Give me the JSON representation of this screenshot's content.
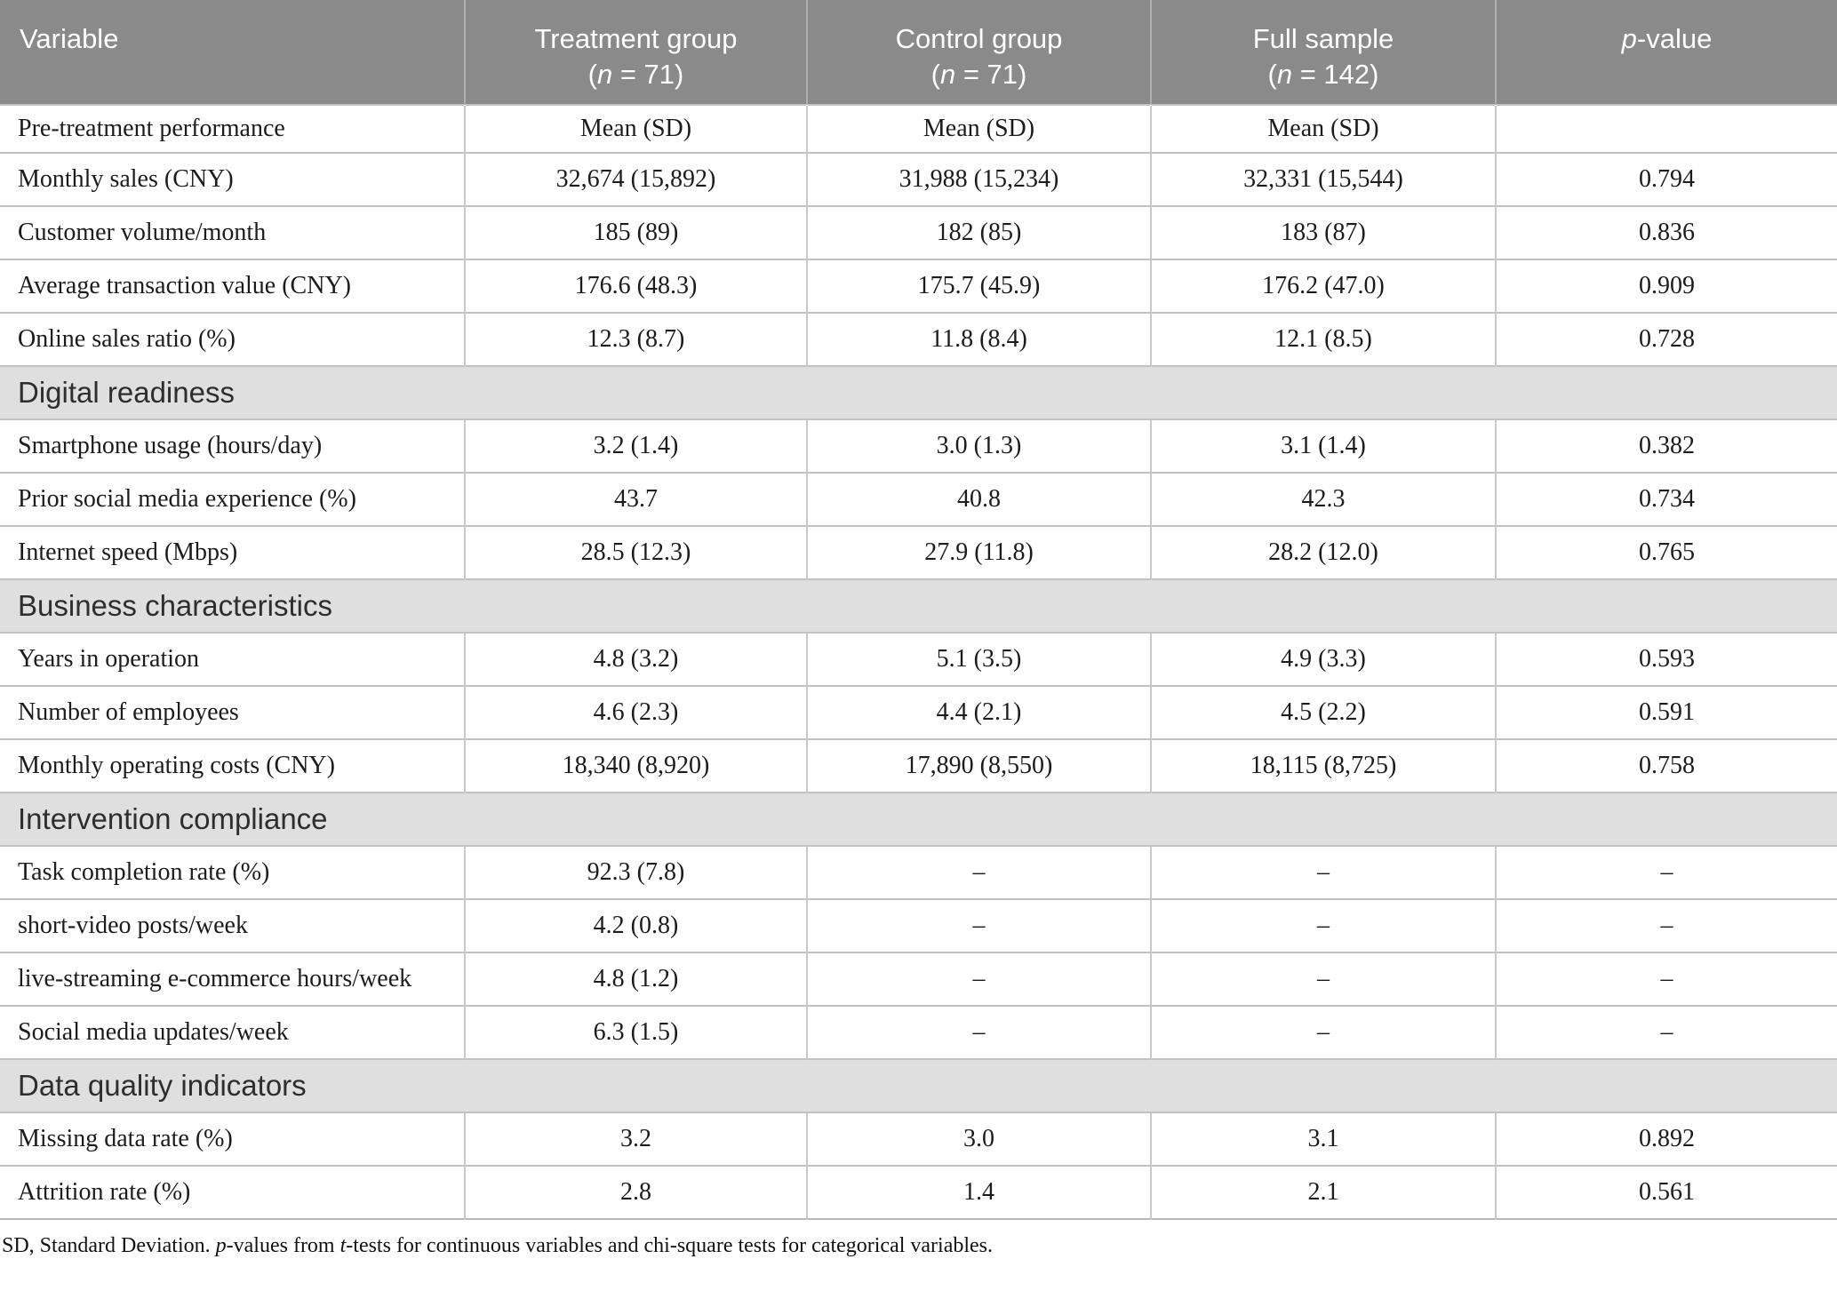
{
  "table": {
    "columns": [
      {
        "name": "variable",
        "line1": [
          {
            "t": "Variable"
          }
        ],
        "line2": null
      },
      {
        "name": "treatment-group",
        "line1": [
          {
            "t": "Treatment group"
          }
        ],
        "line2": [
          {
            "t": "("
          },
          {
            "t": "n",
            "i": true
          },
          {
            "t": " = 71)"
          }
        ]
      },
      {
        "name": "control-group",
        "line1": [
          {
            "t": "Control group"
          }
        ],
        "line2": [
          {
            "t": "("
          },
          {
            "t": "n",
            "i": true
          },
          {
            "t": " = 71)"
          }
        ]
      },
      {
        "name": "full-sample",
        "line1": [
          {
            "t": "Full sample"
          }
        ],
        "line2": [
          {
            "t": "("
          },
          {
            "t": "n",
            "i": true
          },
          {
            "t": " = 142)"
          }
        ]
      },
      {
        "name": "p-value",
        "line1": [
          {
            "t": "p",
            "i": true
          },
          {
            "t": "-value"
          }
        ],
        "line2": null
      }
    ],
    "rows": [
      {
        "type": "subheader",
        "label": "Pre-treatment performance",
        "values": [
          "Mean (SD)",
          "Mean (SD)",
          "Mean (SD)",
          ""
        ]
      },
      {
        "type": "data",
        "label": "Monthly sales (CNY)",
        "values": [
          "32,674 (15,892)",
          "31,988 (15,234)",
          "32,331 (15,544)",
          "0.794"
        ]
      },
      {
        "type": "data",
        "label": "Customer volume/month",
        "values": [
          "185 (89)",
          "182 (85)",
          "183 (87)",
          "0.836"
        ]
      },
      {
        "type": "data",
        "label": "Average transaction value (CNY)",
        "values": [
          "176.6 (48.3)",
          "175.7 (45.9)",
          "176.2 (47.0)",
          "0.909"
        ]
      },
      {
        "type": "data",
        "label": "Online sales ratio (%)",
        "values": [
          "12.3 (8.7)",
          "11.8 (8.4)",
          "12.1 (8.5)",
          "0.728"
        ]
      },
      {
        "type": "section",
        "label": "Digital readiness"
      },
      {
        "type": "data",
        "label": "Smartphone usage (hours/day)",
        "values": [
          "3.2 (1.4)",
          "3.0 (1.3)",
          "3.1 (1.4)",
          "0.382"
        ]
      },
      {
        "type": "data",
        "label": "Prior social media experience (%)",
        "values": [
          "43.7",
          "40.8",
          "42.3",
          "0.734"
        ]
      },
      {
        "type": "data",
        "label": "Internet speed (Mbps)",
        "values": [
          "28.5 (12.3)",
          "27.9 (11.8)",
          "28.2 (12.0)",
          "0.765"
        ]
      },
      {
        "type": "section",
        "label": "Business characteristics"
      },
      {
        "type": "data",
        "label": "Years in operation",
        "values": [
          "4.8 (3.2)",
          "5.1 (3.5)",
          "4.9 (3.3)",
          "0.593"
        ]
      },
      {
        "type": "data",
        "label": "Number of employees",
        "values": [
          "4.6 (2.3)",
          "4.4 (2.1)",
          "4.5 (2.2)",
          "0.591"
        ]
      },
      {
        "type": "data",
        "label": "Monthly operating costs (CNY)",
        "values": [
          "18,340 (8,920)",
          "17,890 (8,550)",
          "18,115 (8,725)",
          "0.758"
        ]
      },
      {
        "type": "section",
        "label": "Intervention compliance"
      },
      {
        "type": "data",
        "label": "Task completion rate (%)",
        "values": [
          "92.3 (7.8)",
          "–",
          "–",
          "–"
        ]
      },
      {
        "type": "data",
        "label": "short-video posts/week",
        "values": [
          "4.2 (0.8)",
          "–",
          "–",
          "–"
        ]
      },
      {
        "type": "data",
        "label": "live-streaming e-commerce hours/week",
        "values": [
          "4.8 (1.2)",
          "–",
          "–",
          "–"
        ]
      },
      {
        "type": "data",
        "label": "Social media updates/week",
        "values": [
          "6.3 (1.5)",
          "–",
          "–",
          "–"
        ]
      },
      {
        "type": "section",
        "label": "Data quality indicators"
      },
      {
        "type": "data",
        "label": "Missing data rate (%)",
        "values": [
          "3.2",
          "3.0",
          "3.1",
          "0.892"
        ]
      },
      {
        "type": "data",
        "label": "Attrition rate (%)",
        "values": [
          "2.8",
          "1.4",
          "2.1",
          "0.561"
        ]
      }
    ],
    "footnote": [
      {
        "t": "SD, Standard Deviation. "
      },
      {
        "t": "p",
        "i": true
      },
      {
        "t": "-values from "
      },
      {
        "t": "t",
        "i": true
      },
      {
        "t": "-tests for continuous variables and chi-square tests for categorical variables."
      }
    ]
  },
  "colors": {
    "header_bg": "#8a8a8a",
    "header_text": "#ffffff",
    "section_bg": "#e0dfdf",
    "body_text": "#1c1c1c",
    "grid_line": "#c2c2c2"
  }
}
